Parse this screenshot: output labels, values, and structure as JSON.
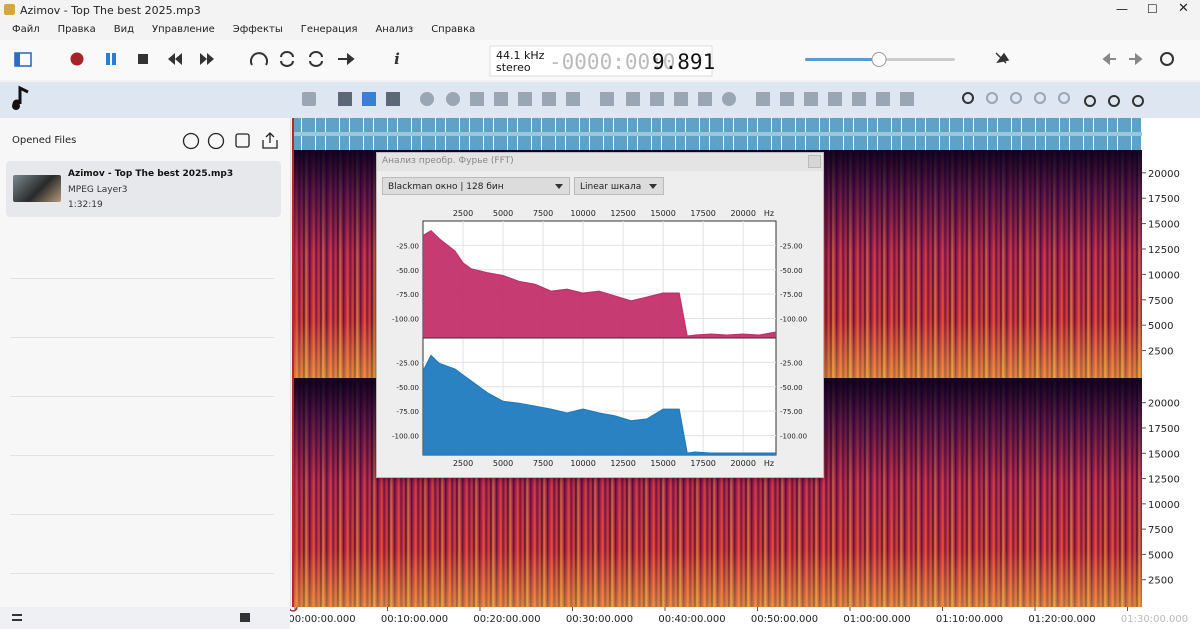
{
  "window": {
    "title": "Azimov - Top The best 2025.mp3"
  },
  "menu": [
    "Файл",
    "Правка",
    "Вид",
    "Управление",
    "Эффекты",
    "Генерация",
    "Анализ",
    "Справка"
  ],
  "toolbar": {
    "info": "i",
    "rate": "44.1 kHz",
    "channels": "stereo",
    "time_dim": "-0000:00:0",
    "time": "9.891"
  },
  "sidebar": {
    "title": "Opened Files",
    "files": [
      {
        "name": "Azimov - Top The best 2025.mp3",
        "format": "MPEG Layer3",
        "duration": "1:32:19"
      }
    ]
  },
  "spectrogram": {
    "ylim": [
      0,
      22050
    ],
    "yticks": [
      2500,
      5000,
      7500,
      10000,
      12500,
      15000,
      17500,
      20000
    ],
    "time_ticks": [
      "00:00:00.000",
      "00:10:00.000",
      "00:20:00.000",
      "00:30:00.000",
      "00:40:00.000",
      "00:50:00.000",
      "01:00:00.000",
      "01:10:00.000",
      "01:20:00.000",
      "01:30:00.000"
    ]
  },
  "fft": {
    "title": "Анализ преобр. Фурье (FFT)",
    "window_option": "Blackman окно | 128 бин",
    "scale_option": "Linear шкала",
    "xlim": [
      0,
      22050
    ],
    "xticks": [
      2500,
      5000,
      7500,
      10000,
      12500,
      15000,
      17500,
      20000
    ],
    "x_unit": "Hz",
    "ylim": [
      -120,
      0
    ],
    "yticks": [
      {
        "value": -25,
        "label": "-25.00"
      },
      {
        "value": -50,
        "label": "-50.00"
      },
      {
        "value": -75,
        "label": "-75.00"
      },
      {
        "value": -100,
        "label": "-100.00"
      }
    ],
    "x": [
      0,
      500,
      1000,
      2000,
      2500,
      3000,
      4000,
      5000,
      6000,
      7000,
      8000,
      9000,
      10000,
      11000,
      12000,
      13000,
      14000,
      15000,
      16000,
      16500,
      17000,
      18000,
      19000,
      20000,
      21000,
      22050
    ],
    "channels": [
      {
        "color": "#c2306a",
        "values": [
          -15,
          -10,
          -18,
          -31,
          -43,
          -49,
          -53,
          -56,
          -62,
          -65,
          -72,
          -70,
          -74,
          -72,
          -77,
          -82,
          -78,
          -74,
          -74,
          -118,
          -117,
          -116,
          -117,
          -116,
          -117,
          -114
        ]
      },
      {
        "color": "#1f7bbf",
        "values": [
          -34,
          -18,
          -26,
          -32,
          -38,
          -44,
          -56,
          -65,
          -67,
          -70,
          -73,
          -77,
          -73,
          -77,
          -80,
          -85,
          -83,
          -73,
          -73,
          -118,
          -117,
          -118,
          -118,
          -118,
          -118,
          -118
        ]
      }
    ]
  }
}
